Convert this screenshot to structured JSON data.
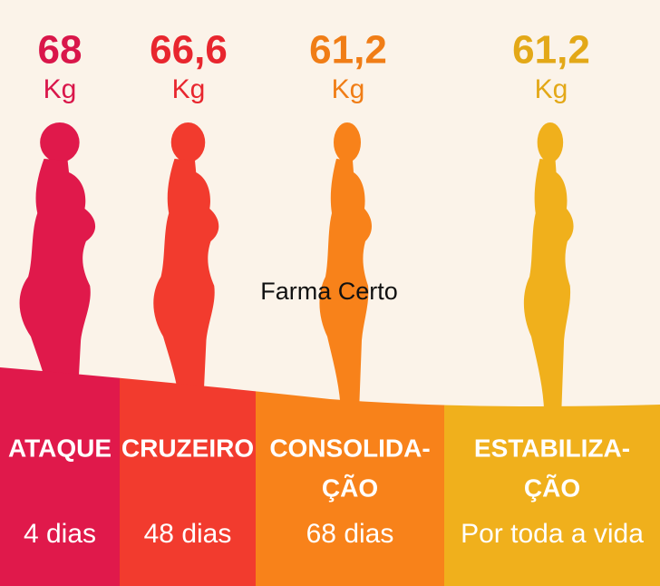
{
  "watermark": "Farma Certo",
  "stages": [
    {
      "weight": "68",
      "unit": "Kg",
      "name": [
        "ATAQUE"
      ],
      "duration": "4 dias"
    },
    {
      "weight": "66,6",
      "unit": "Kg",
      "name": [
        "CRUZEIRO"
      ],
      "duration": "48 dias"
    },
    {
      "weight": "61,2",
      "unit": "Kg",
      "name": [
        "CONSOLIDA-",
        "ÇÃO"
      ],
      "duration": "68 dias"
    },
    {
      "weight": "61,2",
      "unit": "Kg",
      "name": [
        "ESTABILIZA-",
        "ÇÃO"
      ],
      "duration": "Por toda a vida"
    }
  ]
}
